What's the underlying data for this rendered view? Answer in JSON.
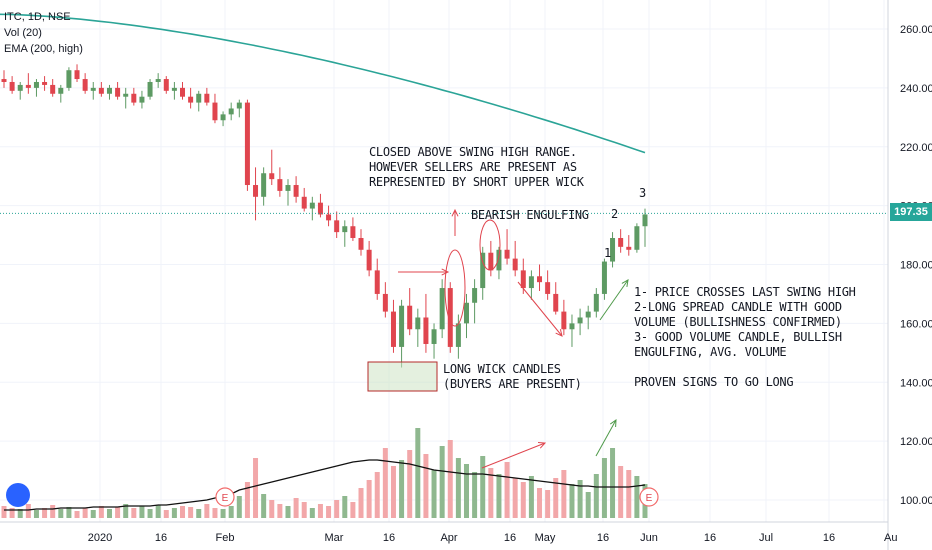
{
  "legend": {
    "symbol": "ITC, 1D, NSE",
    "volume": "Vol (20)",
    "ema": "EMA (200, high)"
  },
  "price_badge": "197.35",
  "earnings_marker": "E",
  "annotations": {
    "swing_high": "CLOSED ABOVE SWING HIGH RANGE.\nHOWEVER SELLERS ARE PRESENT AS\nREPRESENTED BY SHORT UPPER WICK",
    "bearish": "BEARISH ENGULFING",
    "long_wick": "LONG WICK CANDLES\n(BUYERS ARE PRESENT)",
    "summary": "1- PRICE CROSSES LAST SWING HIGH\n2-LONG SPREAD CANDLE WITH GOOD\nVOLUME (BULLISHNESS CONFIRMED)\n3- GOOD VOLUME CANDLE, BULLISH\nENGULFING, AVG. VOLUME\n\nPROVEN SIGNS TO GO LONG",
    "num1": "1",
    "num2": "2",
    "num3": "3"
  },
  "colors": {
    "up": "#5d9a63",
    "down": "#e0454e",
    "vol_up": "#8fb88f",
    "vol_down": "#f2a7a9",
    "ema": "#2ba497",
    "arrow": "#e0454e",
    "arrow_green": "#4f9a4a",
    "box": "#b52a2a"
  },
  "chart_data": {
    "type": "candlestick",
    "title": "ITC, 1D, NSE",
    "y_axis": {
      "ticks": [
        100,
        120,
        140,
        160,
        180,
        200,
        220,
        240,
        260
      ],
      "range": [
        95,
        272
      ]
    },
    "x_axis": {
      "ticks": [
        "2020",
        "16",
        "Feb",
        "Mar",
        "16",
        "Apr",
        "16",
        "May",
        "16",
        "Jun",
        "16",
        "Jul",
        "16",
        "Au"
      ]
    },
    "last_price": 197.35,
    "ema200_high": {
      "start": 265.0,
      "end": 218.0
    },
    "candles_approx": [
      [
        243,
        246,
        240,
        242
      ],
      [
        242,
        244,
        238,
        239
      ],
      [
        239,
        242,
        236,
        241
      ],
      [
        241,
        245,
        238,
        240
      ],
      [
        240,
        243,
        237,
        242
      ],
      [
        242,
        244,
        239,
        241
      ],
      [
        241,
        243,
        237,
        238
      ],
      [
        238,
        241,
        235,
        240
      ],
      [
        240,
        247,
        239,
        246
      ],
      [
        246,
        248,
        242,
        243
      ],
      [
        243,
        245,
        238,
        239
      ],
      [
        239,
        242,
        236,
        240
      ],
      [
        240,
        242,
        237,
        238
      ],
      [
        238,
        241,
        236,
        240
      ],
      [
        240,
        242,
        236,
        237
      ],
      [
        237,
        240,
        233,
        238
      ],
      [
        238,
        240,
        234,
        235
      ],
      [
        235,
        239,
        233,
        237
      ],
      [
        237,
        243,
        236,
        242
      ],
      [
        242,
        245,
        240,
        243
      ],
      [
        243,
        244,
        238,
        239
      ],
      [
        239,
        242,
        236,
        240
      ],
      [
        240,
        242,
        236,
        237
      ],
      [
        237,
        240,
        233,
        235
      ],
      [
        235,
        239,
        232,
        238
      ],
      [
        238,
        240,
        234,
        235
      ],
      [
        235,
        238,
        228,
        229
      ],
      [
        229,
        232,
        227,
        231
      ],
      [
        231,
        235,
        229,
        233
      ],
      [
        233,
        236,
        230,
        235
      ],
      [
        235,
        236,
        205,
        207
      ],
      [
        207,
        213,
        195,
        203
      ],
      [
        203,
        213,
        200,
        211
      ],
      [
        211,
        219,
        207,
        209
      ],
      [
        209,
        213,
        203,
        205
      ],
      [
        205,
        209,
        200,
        207
      ],
      [
        207,
        210,
        201,
        203
      ],
      [
        203,
        206,
        198,
        199
      ],
      [
        199,
        203,
        195,
        201
      ],
      [
        201,
        204,
        196,
        197
      ],
      [
        197,
        200,
        193,
        195
      ],
      [
        195,
        198,
        189,
        191
      ],
      [
        191,
        195,
        186,
        193
      ],
      [
        193,
        196,
        188,
        189
      ],
      [
        189,
        192,
        183,
        185
      ],
      [
        185,
        188,
        176,
        178
      ],
      [
        178,
        182,
        168,
        170
      ],
      [
        170,
        174,
        162,
        164
      ],
      [
        164,
        168,
        150,
        152
      ],
      [
        152,
        168,
        145,
        166
      ],
      [
        166,
        172,
        156,
        158
      ],
      [
        158,
        165,
        152,
        162
      ],
      [
        162,
        170,
        150,
        153
      ],
      [
        153,
        160,
        148,
        158
      ],
      [
        158,
        175,
        155,
        172
      ],
      [
        172,
        174,
        150,
        152
      ],
      [
        152,
        163,
        148,
        160
      ],
      [
        160,
        170,
        155,
        167
      ],
      [
        167,
        175,
        160,
        172
      ],
      [
        172,
        186,
        168,
        184
      ],
      [
        184,
        188,
        176,
        178
      ],
      [
        178,
        186,
        175,
        185
      ],
      [
        185,
        192,
        180,
        182
      ],
      [
        182,
        188,
        176,
        178
      ],
      [
        178,
        182,
        170,
        172
      ],
      [
        172,
        178,
        168,
        176
      ],
      [
        176,
        180,
        171,
        174
      ],
      [
        174,
        178,
        168,
        170
      ],
      [
        170,
        174,
        163,
        164
      ],
      [
        164,
        168,
        156,
        158
      ],
      [
        158,
        163,
        152,
        160
      ],
      [
        160,
        165,
        156,
        162
      ],
      [
        162,
        166,
        158,
        164
      ],
      [
        164,
        172,
        162,
        170
      ],
      [
        170,
        182,
        168,
        181
      ],
      [
        181,
        191,
        179,
        189
      ],
      [
        189,
        192,
        184,
        186
      ],
      [
        186,
        190,
        183,
        185
      ],
      [
        185,
        194,
        184,
        193
      ],
      [
        193,
        199,
        186,
        197
      ]
    ]
  }
}
